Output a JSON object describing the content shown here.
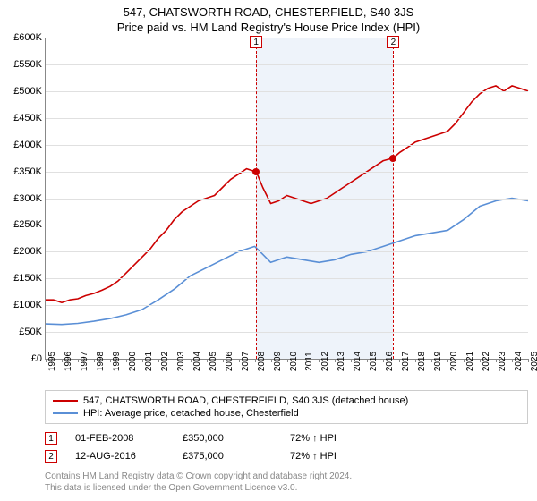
{
  "title_line1": "547, CHATSWORTH ROAD, CHESTERFIELD, S40 3JS",
  "title_line2": "Price paid vs. HM Land Registry's House Price Index (HPI)",
  "chart": {
    "type": "line",
    "background_color": "#ffffff",
    "grid_color": "#e0e0e0",
    "axis_color": "#888888",
    "x_min": 1995,
    "x_max": 2025,
    "x_tick_step": 1,
    "y_min": 0,
    "y_max": 600,
    "y_tick_step": 50,
    "y_prefix": "£",
    "y_suffix": "K",
    "x_labels": [
      "1995",
      "1996",
      "1997",
      "1998",
      "1999",
      "2000",
      "2001",
      "2002",
      "2003",
      "2004",
      "2005",
      "2006",
      "2007",
      "2008",
      "2009",
      "2010",
      "2011",
      "2012",
      "2013",
      "2014",
      "2015",
      "2016",
      "2017",
      "2018",
      "2019",
      "2020",
      "2021",
      "2022",
      "2023",
      "2024",
      "2025"
    ],
    "shaded_band": {
      "x_start": 2008.09,
      "x_end": 2016.62,
      "color": "#eef3fa"
    },
    "series": [
      {
        "name": "547, CHATSWORTH ROAD, CHESTERFIELD, S40 3JS (detached house)",
        "color": "#cc0000",
        "line_width": 1.6,
        "points": [
          [
            1995,
            110
          ],
          [
            1995.5,
            110
          ],
          [
            1996,
            105
          ],
          [
            1996.5,
            110
          ],
          [
            1997,
            112
          ],
          [
            1997.5,
            118
          ],
          [
            1998,
            122
          ],
          [
            1998.5,
            128
          ],
          [
            1999,
            135
          ],
          [
            1999.5,
            145
          ],
          [
            2000,
            160
          ],
          [
            2000.5,
            175
          ],
          [
            2001,
            190
          ],
          [
            2001.5,
            205
          ],
          [
            2002,
            225
          ],
          [
            2002.5,
            240
          ],
          [
            2003,
            260
          ],
          [
            2003.5,
            275
          ],
          [
            2004,
            285
          ],
          [
            2004.5,
            295
          ],
          [
            2005,
            300
          ],
          [
            2005.5,
            305
          ],
          [
            2006,
            320
          ],
          [
            2006.5,
            335
          ],
          [
            2007,
            345
          ],
          [
            2007.5,
            355
          ],
          [
            2008,
            350
          ],
          [
            2008.09,
            350
          ],
          [
            2008.5,
            320
          ],
          [
            2009,
            290
          ],
          [
            2009.5,
            295
          ],
          [
            2010,
            305
          ],
          [
            2010.5,
            300
          ],
          [
            2011,
            295
          ],
          [
            2011.5,
            290
          ],
          [
            2012,
            295
          ],
          [
            2012.5,
            300
          ],
          [
            2013,
            310
          ],
          [
            2013.5,
            320
          ],
          [
            2014,
            330
          ],
          [
            2014.5,
            340
          ],
          [
            2015,
            350
          ],
          [
            2015.5,
            360
          ],
          [
            2016,
            370
          ],
          [
            2016.62,
            375
          ],
          [
            2017,
            385
          ],
          [
            2017.5,
            395
          ],
          [
            2018,
            405
          ],
          [
            2018.5,
            410
          ],
          [
            2019,
            415
          ],
          [
            2019.5,
            420
          ],
          [
            2020,
            425
          ],
          [
            2020.5,
            440
          ],
          [
            2021,
            460
          ],
          [
            2021.5,
            480
          ],
          [
            2022,
            495
          ],
          [
            2022.5,
            505
          ],
          [
            2023,
            510
          ],
          [
            2023.5,
            500
          ],
          [
            2024,
            510
          ],
          [
            2024.5,
            505
          ],
          [
            2025,
            500
          ]
        ]
      },
      {
        "name": "HPI: Average price, detached house, Chesterfield",
        "color": "#5a8fd6",
        "line_width": 1.6,
        "points": [
          [
            1995,
            65
          ],
          [
            1996,
            64
          ],
          [
            1997,
            66
          ],
          [
            1998,
            70
          ],
          [
            1999,
            75
          ],
          [
            2000,
            82
          ],
          [
            2001,
            92
          ],
          [
            2002,
            110
          ],
          [
            2003,
            130
          ],
          [
            2004,
            155
          ],
          [
            2005,
            170
          ],
          [
            2006,
            185
          ],
          [
            2007,
            200
          ],
          [
            2008,
            210
          ],
          [
            2008.5,
            195
          ],
          [
            2009,
            180
          ],
          [
            2010,
            190
          ],
          [
            2011,
            185
          ],
          [
            2012,
            180
          ],
          [
            2013,
            185
          ],
          [
            2014,
            195
          ],
          [
            2015,
            200
          ],
          [
            2016,
            210
          ],
          [
            2017,
            220
          ],
          [
            2018,
            230
          ],
          [
            2019,
            235
          ],
          [
            2020,
            240
          ],
          [
            2021,
            260
          ],
          [
            2022,
            285
          ],
          [
            2023,
            295
          ],
          [
            2024,
            300
          ],
          [
            2025,
            295
          ]
        ]
      }
    ],
    "markers": [
      {
        "id": "1",
        "x": 2008.09,
        "dot_y": 350
      },
      {
        "id": "2",
        "x": 2016.62,
        "dot_y": 375
      }
    ],
    "marker_line_color": "#cc0000",
    "dot_color": "#cc0000"
  },
  "legend": {
    "items": [
      {
        "color": "#cc0000",
        "label": "547, CHATSWORTH ROAD, CHESTERFIELD, S40 3JS (detached house)"
      },
      {
        "color": "#5a8fd6",
        "label": "HPI: Average price, detached house, Chesterfield"
      }
    ]
  },
  "transactions": [
    {
      "id": "1",
      "date": "01-FEB-2008",
      "price": "£350,000",
      "pct": "72% ↑ HPI"
    },
    {
      "id": "2",
      "date": "12-AUG-2016",
      "price": "£375,000",
      "pct": "72% ↑ HPI"
    }
  ],
  "footer_line1": "Contains HM Land Registry data © Crown copyright and database right 2024.",
  "footer_line2": "This data is licensed under the Open Government Licence v3.0."
}
